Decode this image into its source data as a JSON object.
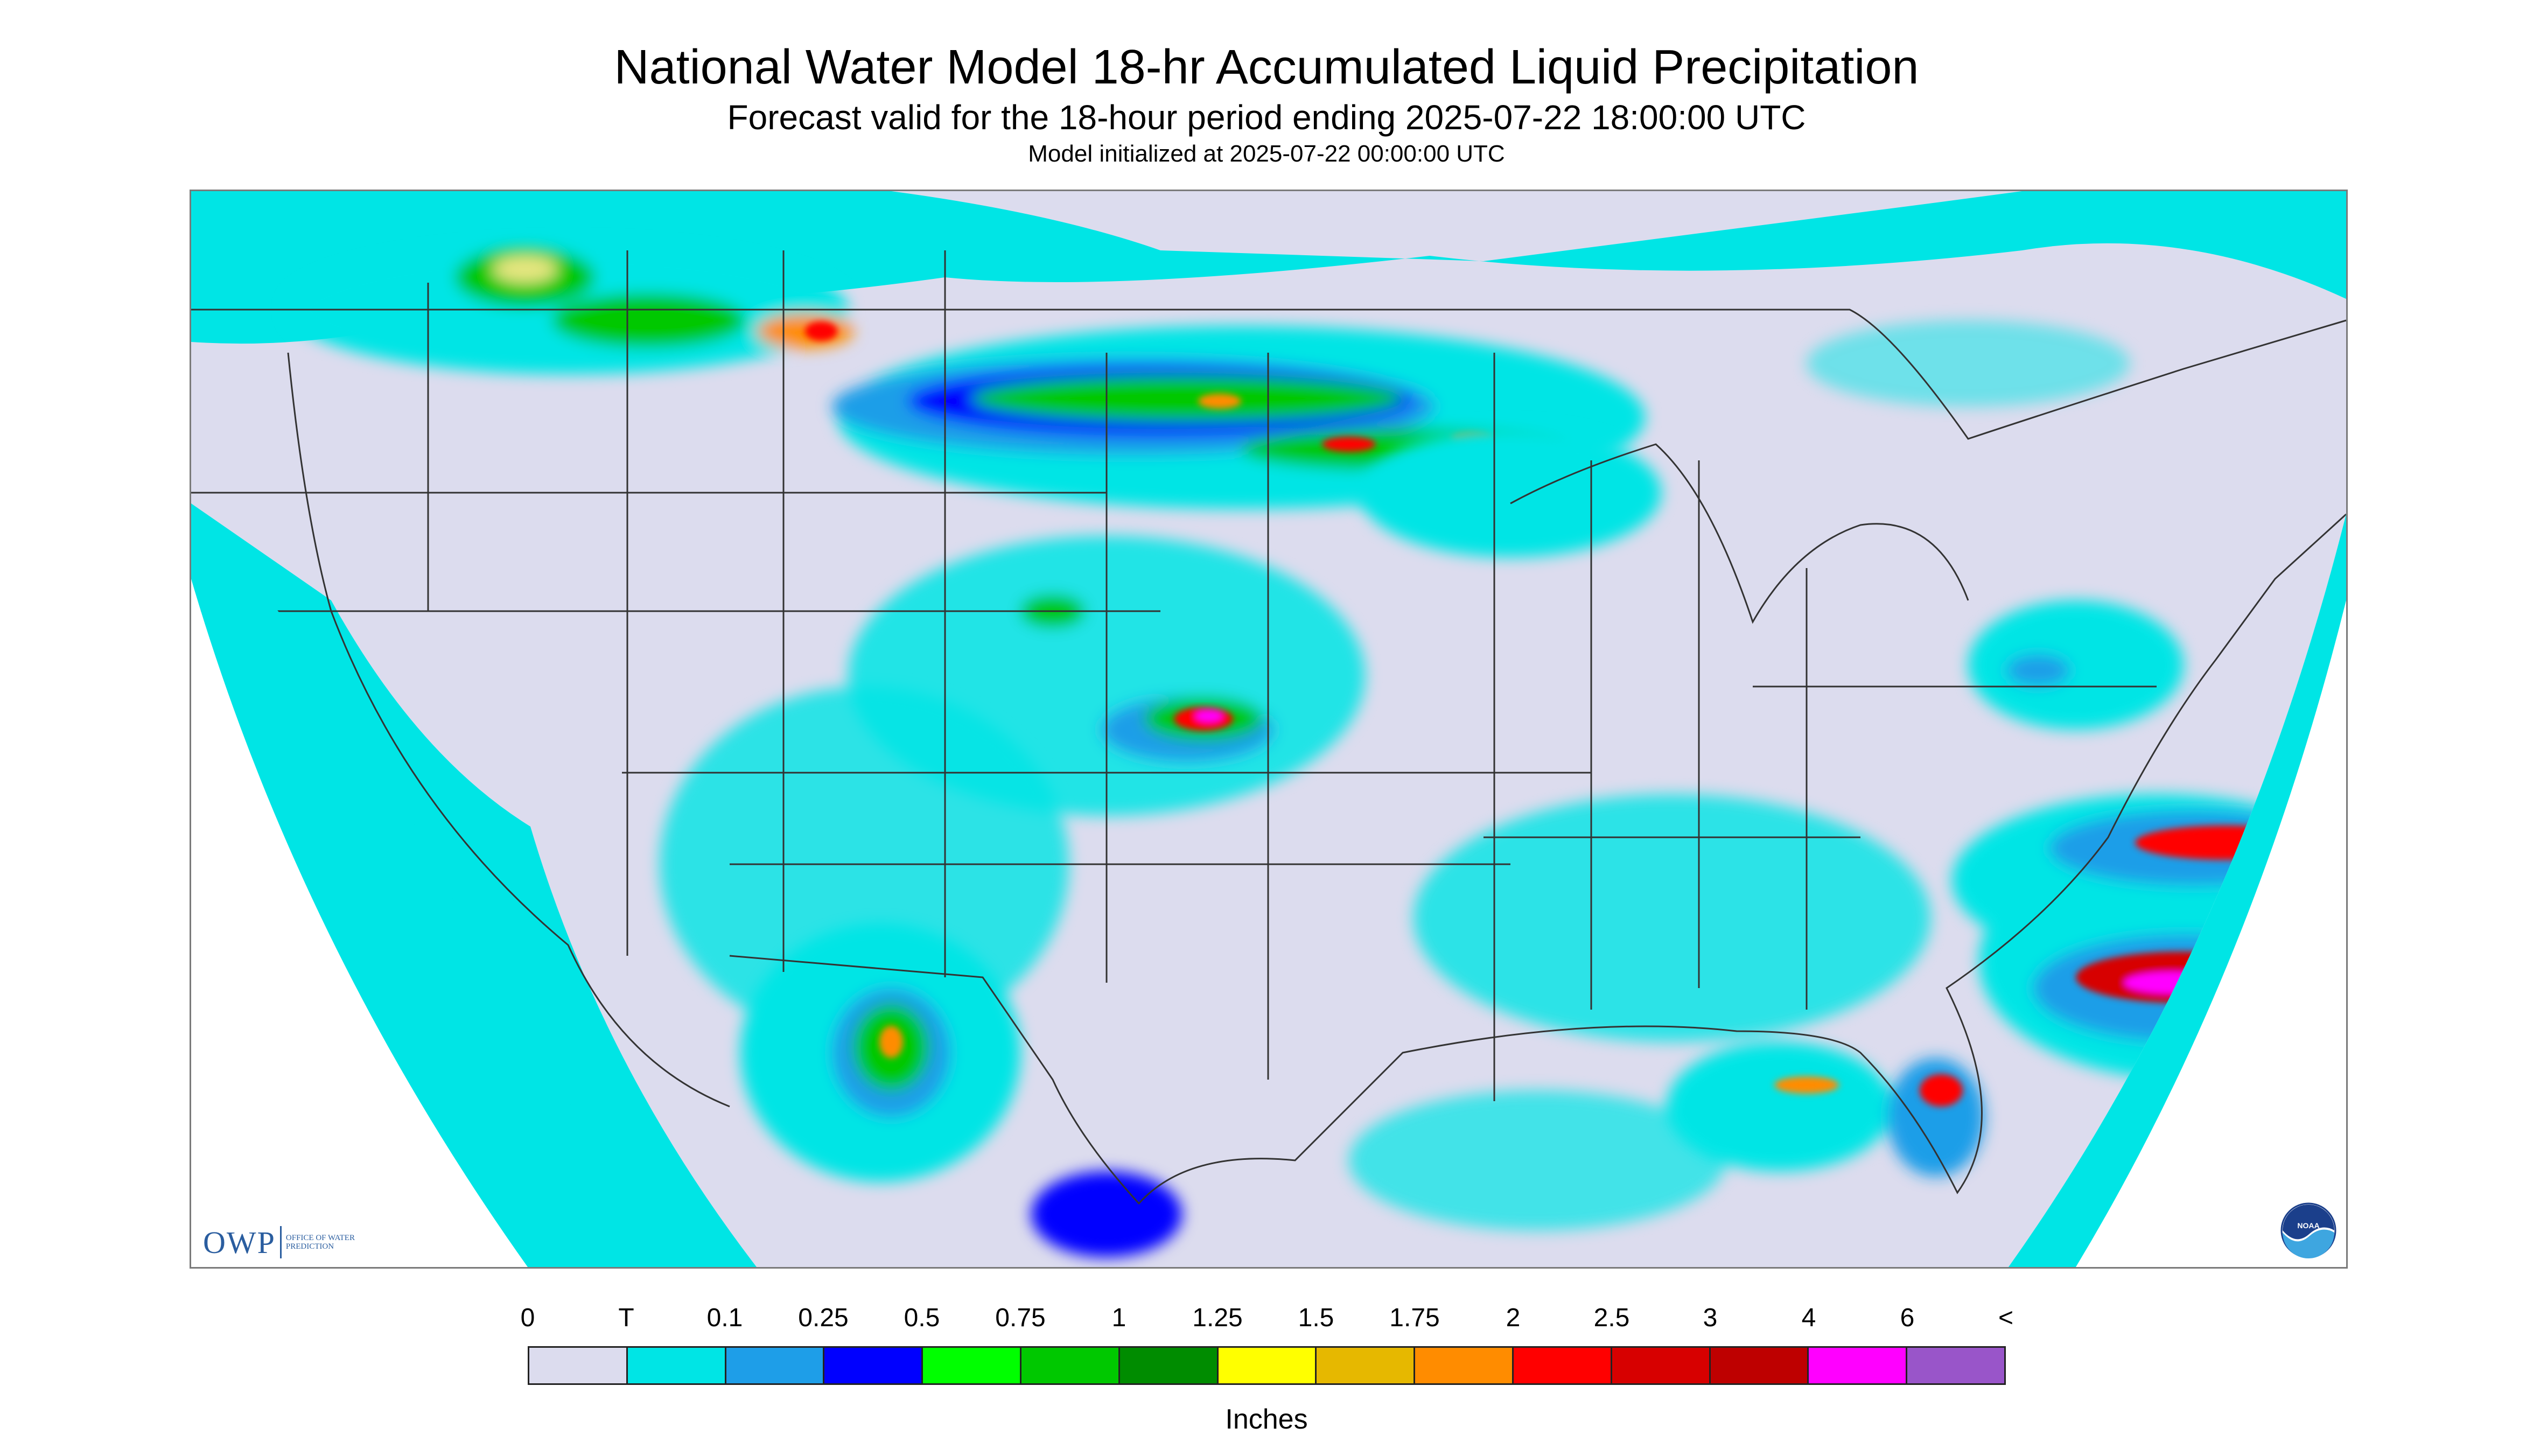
{
  "header": {
    "title": "National Water Model 18-hr Accumulated Liquid Precipitation",
    "subtitle": "Forecast valid for the 18-hour period ending 2025-07-22 18:00:00 UTC",
    "init_line": "Model initialized at 2025-07-22 00:00:00 UTC"
  },
  "map": {
    "region": "Contiguous United States",
    "background_color": "#dcdcee",
    "no_data_color": "#ffffff",
    "boundary_color": "#333333"
  },
  "logos": {
    "owp_letters": "OWP",
    "owp_subtext": "Office of Water Prediction",
    "noaa_text": "NOAA"
  },
  "legend": {
    "ticks": [
      "0",
      "T",
      "0.1",
      "0.25",
      "0.5",
      "0.75",
      "1",
      "1.25",
      "1.5",
      "1.75",
      "2",
      "2.5",
      "3",
      "4",
      "6",
      "<"
    ],
    "colors": [
      "#dcdcee",
      "#00e5e5",
      "#1e9ee8",
      "#0000ff",
      "#00ff00",
      "#00c800",
      "#008c00",
      "#ffff00",
      "#e6b800",
      "#ff8c00",
      "#ff0000",
      "#d70000",
      "#be0000",
      "#ff00ff",
      "#9955c9"
    ],
    "units": "Inches"
  }
}
